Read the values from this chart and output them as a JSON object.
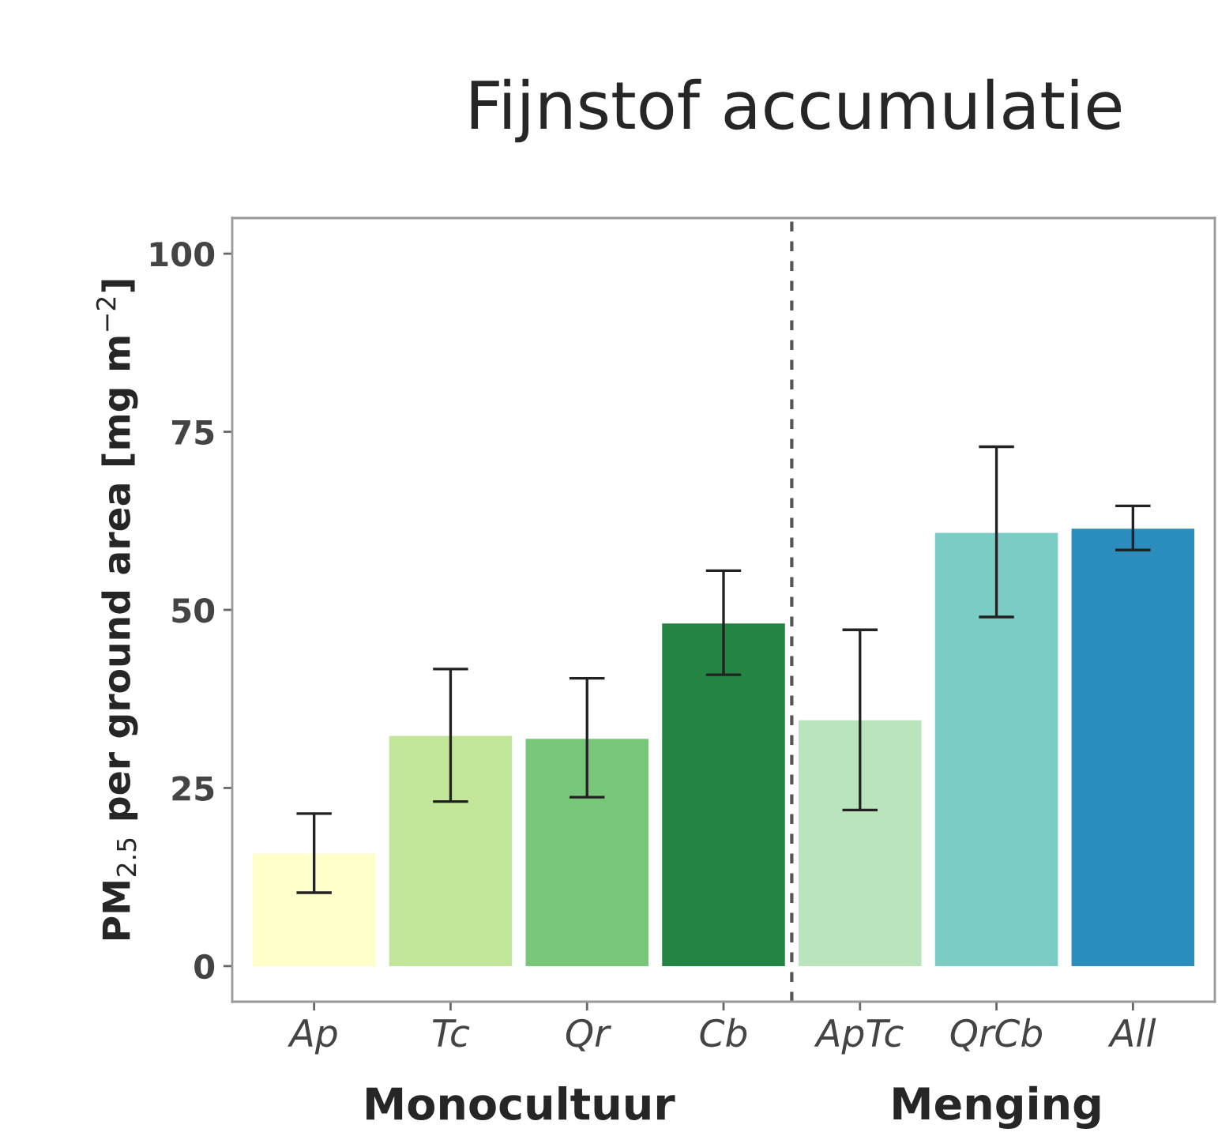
{
  "chart_data": {
    "type": "bar",
    "title": "Fijnstof accumulatie",
    "ylabel": "PM$_{2.5}$ per ground area [mg m$^{−2}$]",
    "categories": [
      "Ap",
      "Tc",
      "Qr",
      "Cb",
      "ApTc",
      "QrCb",
      "All"
    ],
    "values": [
      15.8,
      32.3,
      31.9,
      48.1,
      34.5,
      60.8,
      61.4
    ],
    "colors": [
      "#ffffcc",
      "#c2e699",
      "#78c679",
      "#238443",
      "#bae4bc",
      "#7bccc4",
      "#2b8cbe"
    ],
    "errors": [
      [
        10.3,
        21.4
      ],
      [
        23.1,
        41.7
      ],
      [
        23.7,
        40.4
      ],
      [
        40.9,
        55.5
      ],
      [
        21.9,
        47.2
      ],
      [
        49.0,
        72.9
      ],
      [
        58.4,
        64.6
      ]
    ],
    "ylim": [
      -5,
      105
    ],
    "yticks": [
      0,
      25,
      50,
      75,
      100
    ],
    "grid": false,
    "annotations": [
      "Monocultuur",
      "Menging"
    ]
  }
}
